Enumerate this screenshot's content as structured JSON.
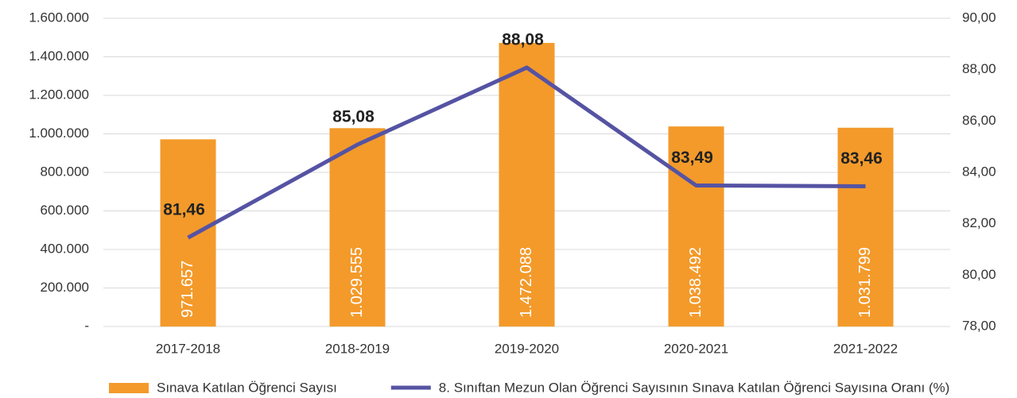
{
  "chart_data": {
    "type": "bar-line",
    "categories": [
      "2017-2018",
      "2018-2019",
      "2019-2020",
      "2020-2021",
      "2021-2022"
    ],
    "series": [
      {
        "name": "Sınava Katılan Öğrenci Sayısı",
        "type": "bar",
        "color": "#f39a2b",
        "axis": "y",
        "values": [
          971657,
          1029555,
          1472088,
          1038492,
          1031799
        ],
        "value_labels": [
          "971.657",
          "1.029.555",
          "1.472.088",
          "1.038.492",
          "1.031.799"
        ]
      },
      {
        "name": "8. Sınıftan Mezun Olan Öğrenci Sayısının Sınava Katılan Öğrenci Sayısına Oranı (%)",
        "type": "line",
        "color": "#5553a3",
        "axis": "y2",
        "values": [
          81.46,
          85.08,
          88.08,
          83.49,
          83.46
        ],
        "value_labels": [
          "81,46",
          "85,08",
          "88,08",
          "83,49",
          "83,46"
        ]
      }
    ],
    "ylim": [
      0,
      1600000
    ],
    "yticks": [
      {
        "value": 0,
        "label": "-"
      },
      {
        "value": 200000,
        "label": "200.000"
      },
      {
        "value": 400000,
        "label": "400.000"
      },
      {
        "value": 600000,
        "label": "600.000"
      },
      {
        "value": 800000,
        "label": "800.000"
      },
      {
        "value": 1000000,
        "label": "1.000.000"
      },
      {
        "value": 1200000,
        "label": "1.200.000"
      },
      {
        "value": 1400000,
        "label": "1.400.000"
      },
      {
        "value": 1600000,
        "label": "1.600.000"
      }
    ],
    "y2lim": [
      78,
      90
    ],
    "y2ticks": [
      {
        "value": 78,
        "label": "78,00"
      },
      {
        "value": 80,
        "label": "80,00"
      },
      {
        "value": 82,
        "label": "82,00"
      },
      {
        "value": 84,
        "label": "84,00"
      },
      {
        "value": 86,
        "label": "86,00"
      },
      {
        "value": 88,
        "label": "88,00"
      },
      {
        "value": 90,
        "label": "90,00"
      }
    ],
    "grid": true,
    "legend": "bottom"
  }
}
